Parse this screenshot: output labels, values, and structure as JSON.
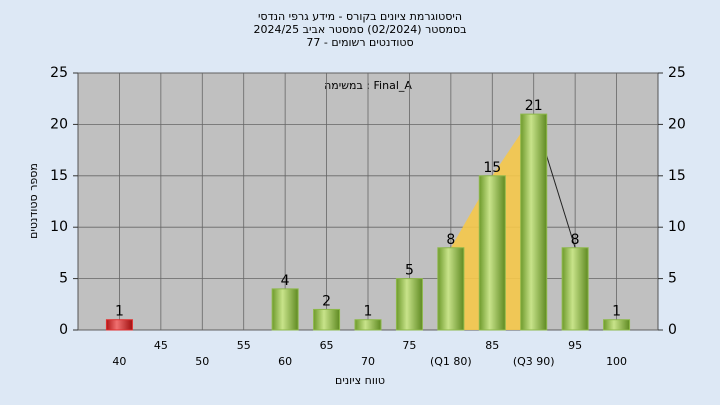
{
  "chart_data": {
    "type": "bar",
    "title": [
      "היסטוגרמת ציונים בקורס - מידע גרפי הנדסי",
      "בסמסטר  (02/2024)  סמסטר אביב 2024/25",
      "סטודנטים רשומים - 77"
    ],
    "annotation": "במשימה : Final_A",
    "xlabel": "טווח ציונים",
    "ylabel": "מספר סטודנטים",
    "categories": [
      "40",
      "45",
      "50",
      "55",
      "60",
      "65",
      "70",
      "75",
      "(Q1 80)",
      "85",
      "(Q3 90)",
      "95",
      "100"
    ],
    "values": [
      1,
      0,
      0,
      0,
      4,
      2,
      1,
      5,
      8,
      15,
      21,
      8,
      1
    ],
    "colors": [
      "#e03030",
      "#8db84a",
      "#8db84a",
      "#8db84a",
      "#8db84a",
      "#8db84a",
      "#8db84a",
      "#8db84a",
      "#8db84a",
      "#8db84a",
      "#8db84a",
      "#8db84a",
      "#8db84a"
    ],
    "ylim": [
      0,
      25
    ],
    "yticks": [
      0,
      5,
      10,
      15,
      20,
      25
    ],
    "y2lim": [
      0,
      25
    ],
    "y2ticks": [
      0,
      5,
      10,
      15,
      20,
      25
    ],
    "grid": true
  }
}
